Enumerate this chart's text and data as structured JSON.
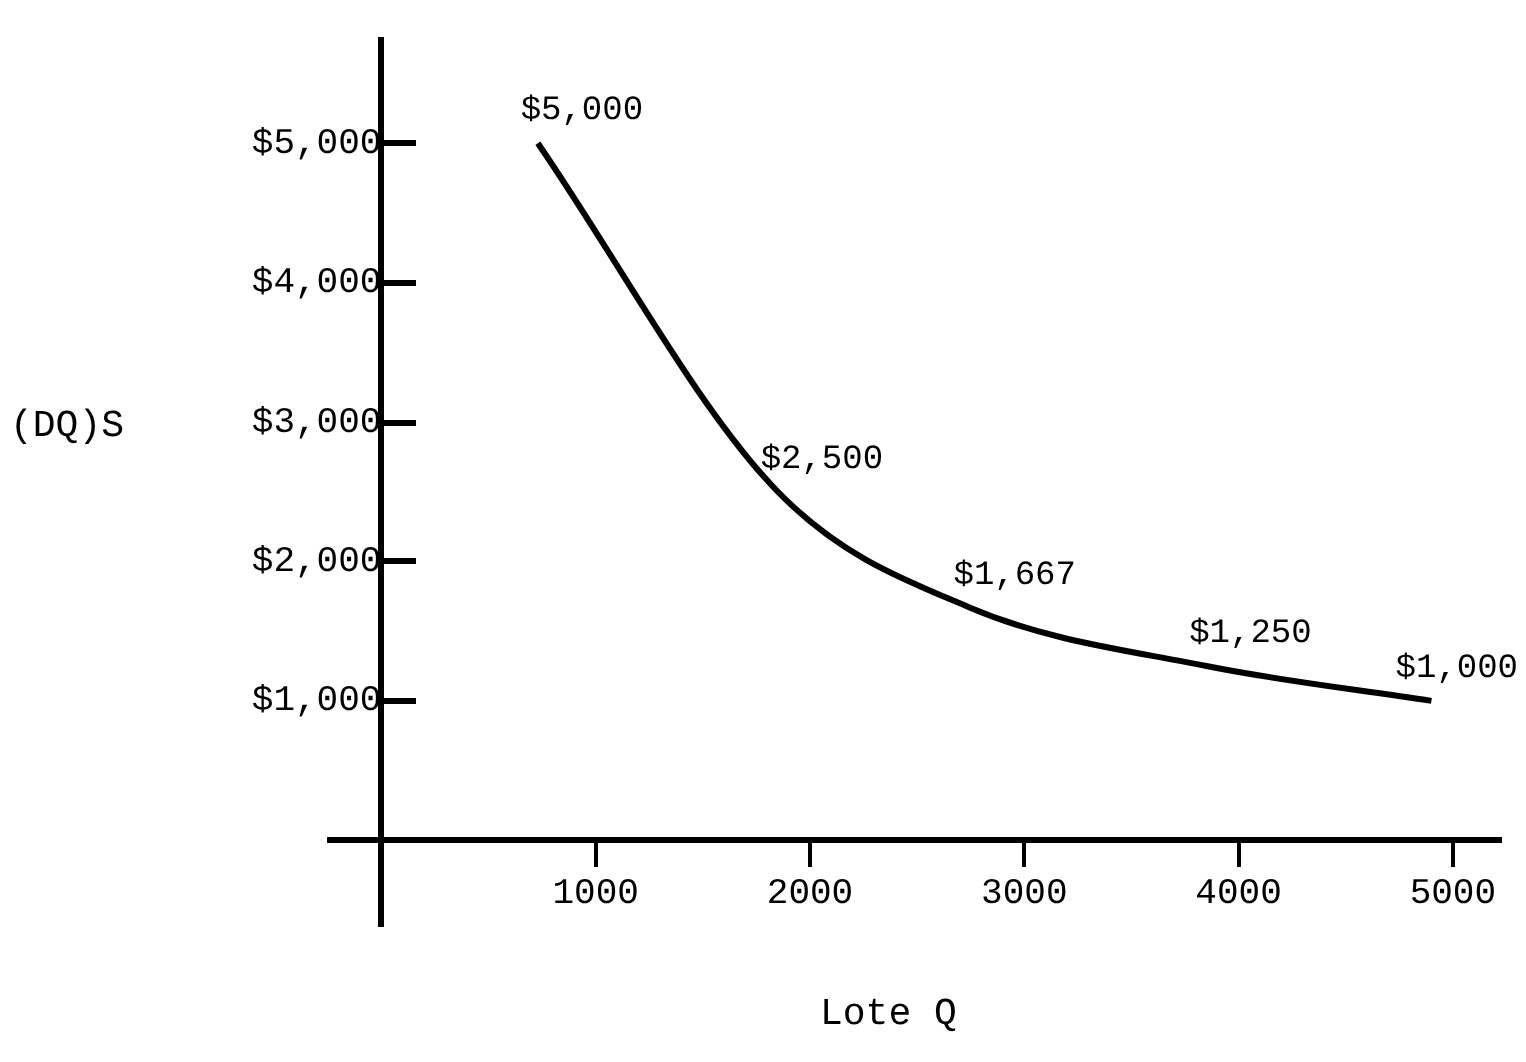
{
  "chart_data": {
    "type": "line",
    "xlabel": "Lote Q",
    "ylabel": "(DQ)S",
    "x": [
      730,
      1850,
      2750,
      3850,
      4900
    ],
    "series": [
      {
        "color": "#000000",
        "values": [
          5000,
          2500,
          1667,
          1250,
          1000
        ],
        "value_labels": [
          "$5,000",
          "$2,500",
          "$1,667",
          "$1,250",
          "$1,000"
        ]
      }
    ],
    "xlim": [
      -240,
      5220
    ],
    "xticks": [
      1000,
      2000,
      3000,
      4000,
      5000
    ],
    "ylim": [
      -600,
      5740
    ],
    "yticks": [
      {
        "value": 1000,
        "label": "$1,000"
      },
      {
        "value": 2000,
        "label": "$2,000"
      },
      {
        "value": 3000,
        "label": "$3,000"
      },
      {
        "value": 4000,
        "label": "$4,000"
      },
      {
        "value": 5000,
        "label": "$5,000"
      }
    ],
    "grid": false,
    "legend": false,
    "marker": "none",
    "line_style": "solid"
  }
}
